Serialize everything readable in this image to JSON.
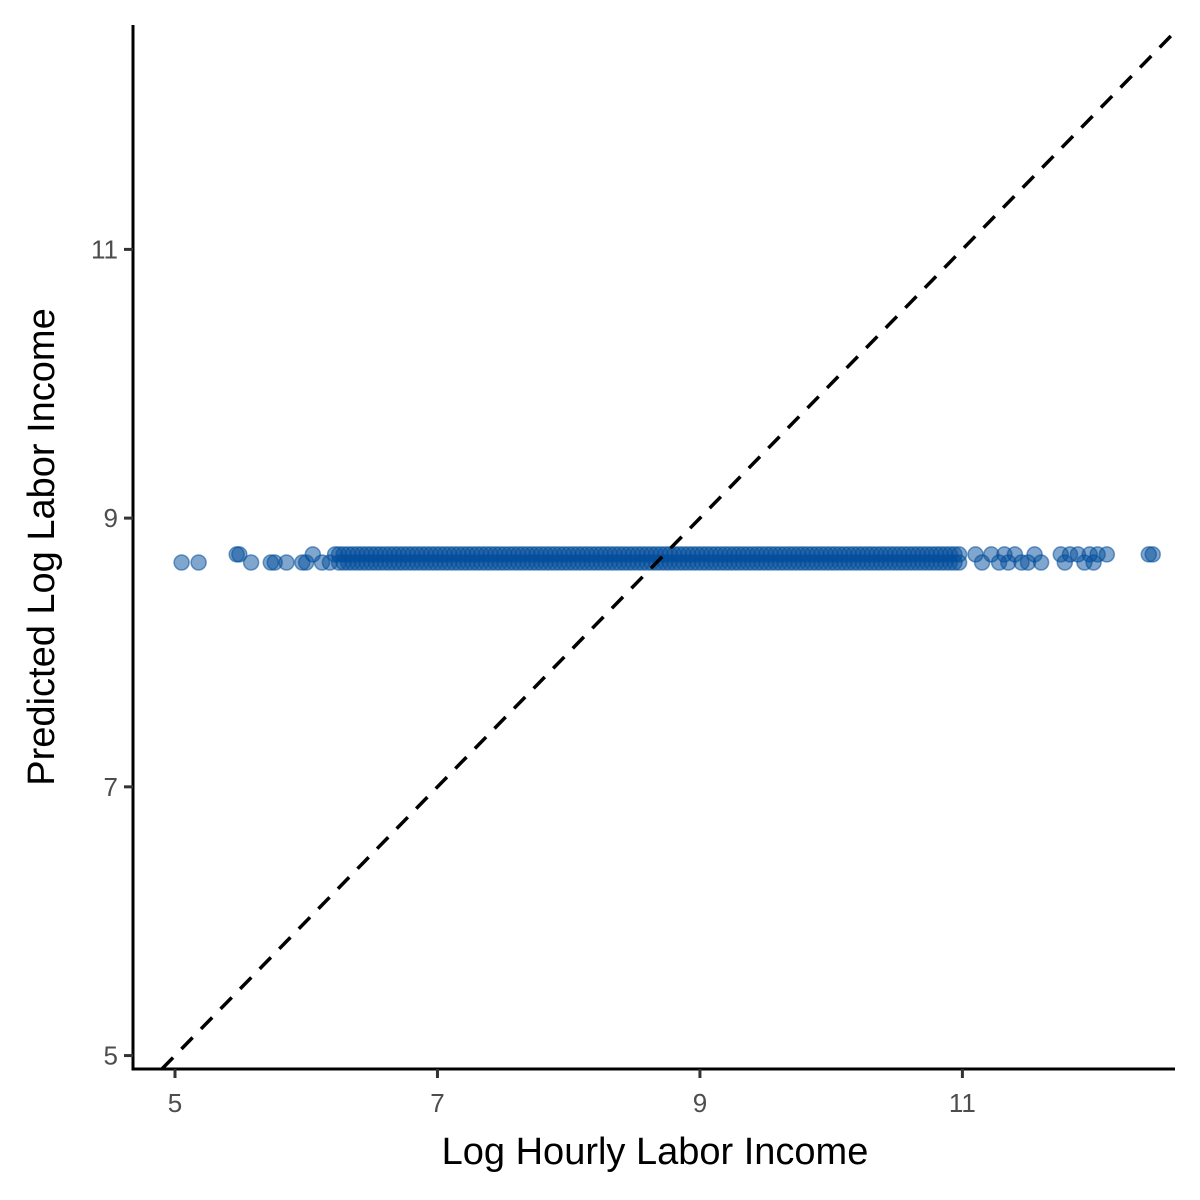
{
  "chart_data": {
    "type": "scatter",
    "title": "",
    "xlabel": "Log Hourly Labor Income",
    "ylabel": "Predicted Log Labor Income",
    "xlim": [
      4.68,
      12.62
    ],
    "ylim": [
      4.9,
      12.67
    ],
    "x_ticks": [
      5,
      7,
      9,
      11
    ],
    "y_ticks": [
      5,
      7,
      9,
      11
    ],
    "x_tick_labels": [
      "5",
      "7",
      "9",
      "11"
    ],
    "y_tick_labels": [
      "5",
      "7",
      "9",
      "11"
    ],
    "grid": false,
    "legend": "none",
    "reference_line": {
      "type": "identity",
      "slope": 1,
      "intercept": 0,
      "style": "dashed",
      "color": "#000000"
    },
    "point_color": "#034e9b",
    "point_opacity": 0.5,
    "dense_band": {
      "x_from": 6.25,
      "x_to": 11.0,
      "y_values": [
        8.67,
        8.73
      ],
      "x_step": 0.035
    },
    "series": [
      {
        "x": [
          5.05,
          5.18,
          5.47,
          5.49,
          5.58,
          5.73,
          5.76,
          5.85,
          5.97,
          6.0,
          6.05,
          6.12,
          6.18,
          6.22,
          11.1,
          11.15,
          11.22,
          11.28,
          11.32,
          11.35,
          11.4,
          11.45,
          11.5,
          11.55,
          11.6,
          11.75,
          11.78,
          11.82,
          11.88,
          11.93,
          11.97,
          12.0,
          12.03,
          12.1,
          12.42,
          12.45
        ],
        "y": [
          8.67,
          8.67,
          8.73,
          8.73,
          8.67,
          8.67,
          8.67,
          8.67,
          8.67,
          8.67,
          8.73,
          8.67,
          8.67,
          8.73,
          8.73,
          8.67,
          8.73,
          8.67,
          8.73,
          8.67,
          8.73,
          8.67,
          8.67,
          8.73,
          8.67,
          8.73,
          8.67,
          8.73,
          8.73,
          8.67,
          8.73,
          8.67,
          8.73,
          8.73,
          8.73,
          8.73
        ]
      }
    ]
  }
}
